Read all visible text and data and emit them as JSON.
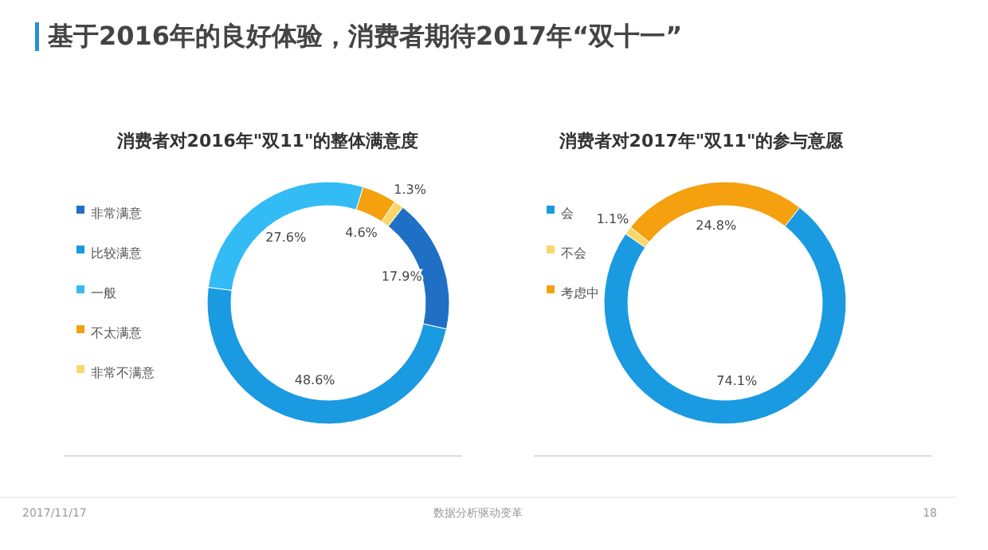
{
  "chart_data": [
    {
      "type": "donut",
      "title": "消费者对2016年\"双11\"的整体满意度",
      "categories": [
        "非常满意",
        "比较满意",
        "一般",
        "不太满意",
        "非常不满意"
      ],
      "values": [
        17.9,
        48.6,
        27.6,
        4.6,
        1.3
      ],
      "colors": [
        "#1f6fc5",
        "#1a9ae0",
        "#33bbf5",
        "#f5a00f",
        "#fbd76b"
      ],
      "value_labels": [
        "17.9%",
        "48.6%",
        "27.6%",
        "4.6%",
        "1.3%"
      ],
      "legend": "left",
      "annotations": [
        "基于2016年的良好体验，消费者期待2017年“双十一”",
        "2017/11/17",
        "数据分析驱动变革",
        "18"
      ]
    },
    {
      "type": "donut",
      "title": "消费者对2017年\"双11\"的参与意愿",
      "categories": [
        "会",
        "不会",
        "考虑中"
      ],
      "values": [
        74.1,
        1.1,
        24.8
      ],
      "colors": [
        "#1a9ae0",
        "#fbd76b",
        "#f5a00f"
      ],
      "value_labels": [
        "74.1%",
        "1.1%",
        "24.8%"
      ],
      "legend": "left"
    }
  ]
}
